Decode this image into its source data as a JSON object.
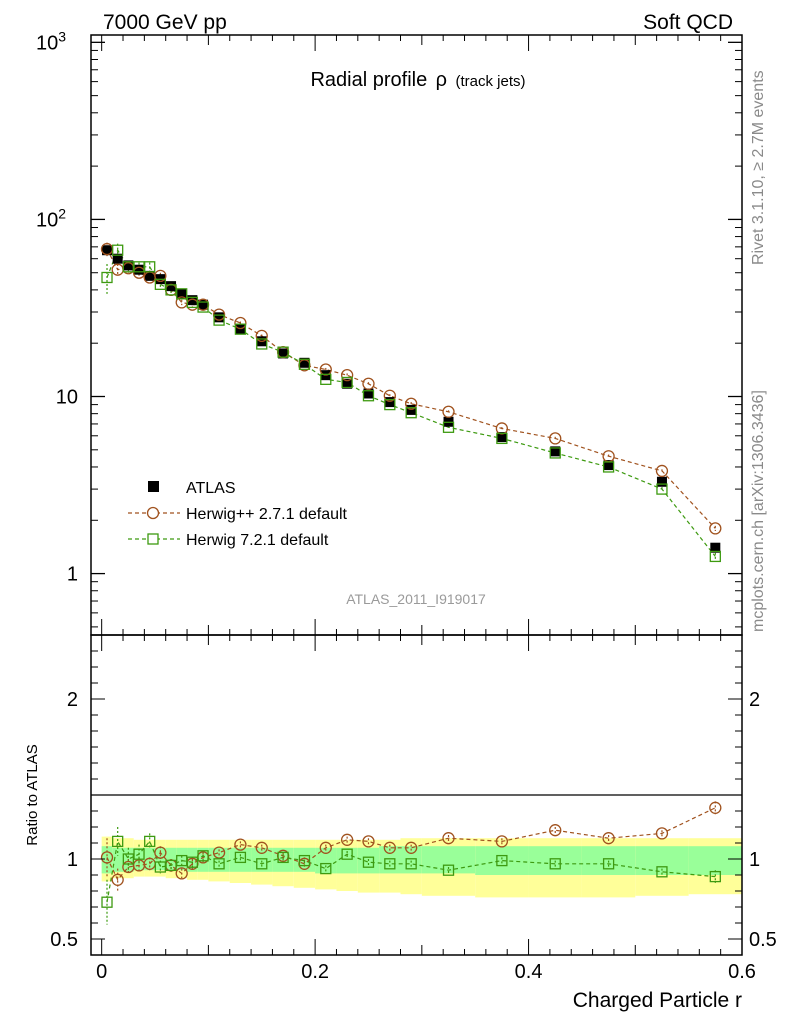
{
  "header": {
    "left": "7000 GeV pp",
    "right": "Soft QCD",
    "title_main": "Radial profile",
    "title_symbol": "ρ",
    "title_sub": "(track jets)",
    "side_top": "Rivet 3.1.10, ≥ 2.7M events",
    "side_bottom": "mcplots.cern.ch [arXiv:1306.3436]",
    "analysis": "ATLAS_2011_I919017"
  },
  "legend": {
    "atlas": "ATLAS",
    "herwigpp": "Herwig++ 2.7.1 default",
    "herwig7": "Herwig 7.2.1 default"
  },
  "colors": {
    "atlas": "#000000",
    "herwigpp": "#a0521e",
    "herwig7": "#3d9a10",
    "band_outer": "#ffff99",
    "band_inner": "#99ff99"
  },
  "chart_data": [
    {
      "type": "scatter",
      "scale": "log",
      "ylim": [
        0.45,
        1100
      ],
      "xlim": [
        -0.01,
        0.6
      ],
      "y_ticks": [
        "1",
        "10",
        "10^2",
        "10^3"
      ],
      "x": [
        0.005,
        0.015,
        0.025,
        0.035,
        0.045,
        0.055,
        0.065,
        0.075,
        0.085,
        0.095,
        0.11,
        0.13,
        0.15,
        0.17,
        0.19,
        0.21,
        0.23,
        0.25,
        0.27,
        0.29,
        0.325,
        0.375,
        0.425,
        0.475,
        0.525,
        0.575
      ],
      "series": [
        {
          "name": "ATLAS",
          "values": [
            67,
            60,
            55,
            52,
            48,
            46,
            42,
            38,
            35,
            33,
            28,
            24,
            20.5,
            17.5,
            15.5,
            13.2,
            11.8,
            10.4,
            9.3,
            8.4,
            7.2,
            5.9,
            4.9,
            4.1,
            3.3,
            1.4
          ]
        },
        {
          "name": "Herwig++ 2.7.1 default",
          "values": [
            68,
            52,
            53,
            50,
            47,
            48,
            40,
            34,
            33,
            33,
            29,
            26,
            22,
            17.8,
            15,
            14.2,
            13.2,
            11.8,
            10.1,
            9.1,
            8.2,
            6.6,
            5.8,
            4.6,
            3.8,
            1.8
          ]
        },
        {
          "name": "Herwig 7.2.1 default",
          "values": [
            47,
            67,
            54,
            54,
            54,
            43,
            40,
            38,
            34,
            32,
            27,
            24,
            19.8,
            17.8,
            15.2,
            12.5,
            12,
            10.1,
            9,
            8.1,
            6.7,
            5.8,
            4.8,
            4,
            3,
            1.25
          ]
        }
      ],
      "herwigpp_err": [
        6,
        4,
        3,
        2,
        2,
        2,
        1.5,
        1.2,
        1,
        1,
        0.6,
        0.5,
        0.4,
        0.3,
        0.3,
        0.3,
        0.3,
        0.25,
        0.2,
        0.2,
        0.15,
        0.12,
        0.12,
        0.1,
        0.08,
        0.06
      ],
      "herwig7_err": [
        9,
        6,
        4,
        3,
        3,
        2,
        1.5,
        1.2,
        1,
        1,
        0.6,
        0.5,
        0.4,
        0.3,
        0.3,
        0.3,
        0.3,
        0.25,
        0.2,
        0.2,
        0.15,
        0.12,
        0.12,
        0.1,
        0.08,
        0.06
      ]
    },
    {
      "type": "scatter",
      "ylabel": "Ratio to ATLAS",
      "ylim": [
        0.4,
        2.4
      ],
      "y_ticks": [
        "0.5",
        "1",
        "2"
      ],
      "x_ticks": [
        "0",
        "0.2",
        "0.4",
        "0.6"
      ],
      "xlabel": "Charged Particle r",
      "bins": [
        0,
        0.01,
        0.02,
        0.03,
        0.04,
        0.05,
        0.06,
        0.07,
        0.08,
        0.09,
        0.1,
        0.12,
        0.14,
        0.16,
        0.18,
        0.2,
        0.22,
        0.24,
        0.26,
        0.28,
        0.3,
        0.35,
        0.4,
        0.45,
        0.5,
        0.55,
        0.6
      ],
      "band_outer_low": [
        0.86,
        0.88,
        0.88,
        0.89,
        0.89,
        0.89,
        0.88,
        0.88,
        0.87,
        0.87,
        0.86,
        0.85,
        0.84,
        0.83,
        0.82,
        0.81,
        0.8,
        0.79,
        0.79,
        0.78,
        0.77,
        0.76,
        0.76,
        0.76,
        0.77,
        0.78
      ],
      "band_outer_high": [
        1.14,
        1.13,
        1.13,
        1.12,
        1.12,
        1.12,
        1.12,
        1.12,
        1.12,
        1.12,
        1.12,
        1.12,
        1.12,
        1.12,
        1.12,
        1.12,
        1.12,
        1.12,
        1.12,
        1.13,
        1.13,
        1.13,
        1.13,
        1.13,
        1.13,
        1.13
      ],
      "band_inner_low": [
        0.91,
        0.92,
        0.92,
        0.93,
        0.93,
        0.93,
        0.93,
        0.93,
        0.92,
        0.92,
        0.92,
        0.92,
        0.92,
        0.92,
        0.92,
        0.91,
        0.91,
        0.91,
        0.91,
        0.91,
        0.91,
        0.9,
        0.9,
        0.9,
        0.9,
        0.9
      ],
      "band_inner_high": [
        1.08,
        1.07,
        1.07,
        1.07,
        1.07,
        1.07,
        1.07,
        1.07,
        1.07,
        1.07,
        1.07,
        1.07,
        1.07,
        1.07,
        1.07,
        1.07,
        1.07,
        1.07,
        1.08,
        1.08,
        1.08,
        1.08,
        1.08,
        1.08,
        1.08,
        1.08
      ],
      "series": [
        {
          "name": "Herwig++ 2.7.1 default",
          "values": [
            1.01,
            0.87,
            0.95,
            0.96,
            0.97,
            1.04,
            0.96,
            0.91,
            0.97,
            1.01,
            1.04,
            1.09,
            1.07,
            1.02,
            0.97,
            1.07,
            1.12,
            1.11,
            1.07,
            1.07,
            1.13,
            1.11,
            1.18,
            1.13,
            1.16,
            1.32
          ],
          "err": [
            0.12,
            0.07,
            0.05,
            0.05,
            0.04,
            0.04,
            0.04,
            0.03,
            0.03,
            0.03,
            0.02,
            0.02,
            0.02,
            0.02,
            0.02,
            0.02,
            0.02,
            0.02,
            0.02,
            0.02,
            0.02,
            0.02,
            0.02,
            0.02,
            0.02,
            0.04
          ]
        },
        {
          "name": "Herwig 7.2.1 default",
          "values": [
            0.73,
            1.11,
            1.0,
            1.03,
            1.11,
            0.95,
            0.96,
            0.99,
            0.98,
            1.02,
            0.97,
            1.01,
            0.97,
            1.01,
            0.99,
            0.94,
            1.03,
            0.98,
            0.97,
            0.97,
            0.93,
            0.99,
            0.97,
            0.97,
            0.92,
            0.89
          ],
          "err": [
            0.14,
            0.09,
            0.07,
            0.06,
            0.05,
            0.04,
            0.04,
            0.03,
            0.03,
            0.03,
            0.02,
            0.02,
            0.02,
            0.02,
            0.02,
            0.02,
            0.02,
            0.02,
            0.02,
            0.02,
            0.02,
            0.02,
            0.02,
            0.02,
            0.02,
            0.04
          ]
        }
      ]
    }
  ]
}
